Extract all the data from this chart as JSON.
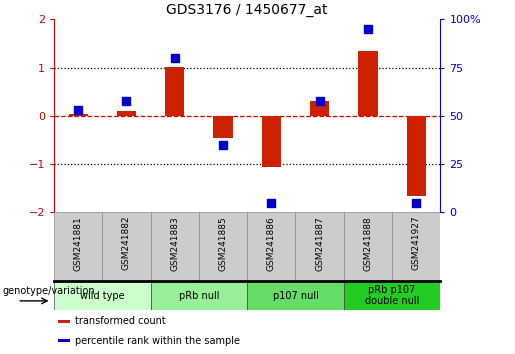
{
  "title": "GDS3176 / 1450677_at",
  "samples": [
    "GSM241881",
    "GSM241882",
    "GSM241883",
    "GSM241885",
    "GSM241886",
    "GSM241887",
    "GSM241888",
    "GSM241927"
  ],
  "bar_values": [
    0.05,
    0.1,
    1.02,
    -0.45,
    -1.05,
    0.3,
    1.35,
    -1.65
  ],
  "dot_percentile": [
    53,
    58,
    80,
    35,
    5,
    58,
    95,
    5
  ],
  "bar_color": "#cc2200",
  "dot_color": "#0000cc",
  "ylim_left": [
    -2,
    2
  ],
  "ylim_right": [
    0,
    100
  ],
  "yticks_left": [
    -2,
    -1,
    0,
    1,
    2
  ],
  "yticks_right": [
    0,
    25,
    50,
    75,
    100
  ],
  "ytick_labels_right": [
    "0",
    "25",
    "50",
    "75",
    "100%"
  ],
  "groups": [
    {
      "label": "wild type",
      "start": 0,
      "end": 2,
      "color": "#ccffcc"
    },
    {
      "label": "pRb null",
      "start": 2,
      "end": 4,
      "color": "#99ee99"
    },
    {
      "label": "p107 null",
      "start": 4,
      "end": 6,
      "color": "#66dd66"
    },
    {
      "label": "pRb p107\ndouble null",
      "start": 6,
      "end": 8,
      "color": "#22cc22"
    }
  ],
  "genotype_label": "genotype/variation",
  "legend_entries": [
    {
      "label": "transformed count",
      "color": "#cc2200"
    },
    {
      "label": "percentile rank within the sample",
      "color": "#0000cc"
    }
  ],
  "bar_width": 0.4,
  "dot_size": 35,
  "background_color": "#ffffff",
  "left_color": "#cc0000",
  "right_color": "#0000cc"
}
